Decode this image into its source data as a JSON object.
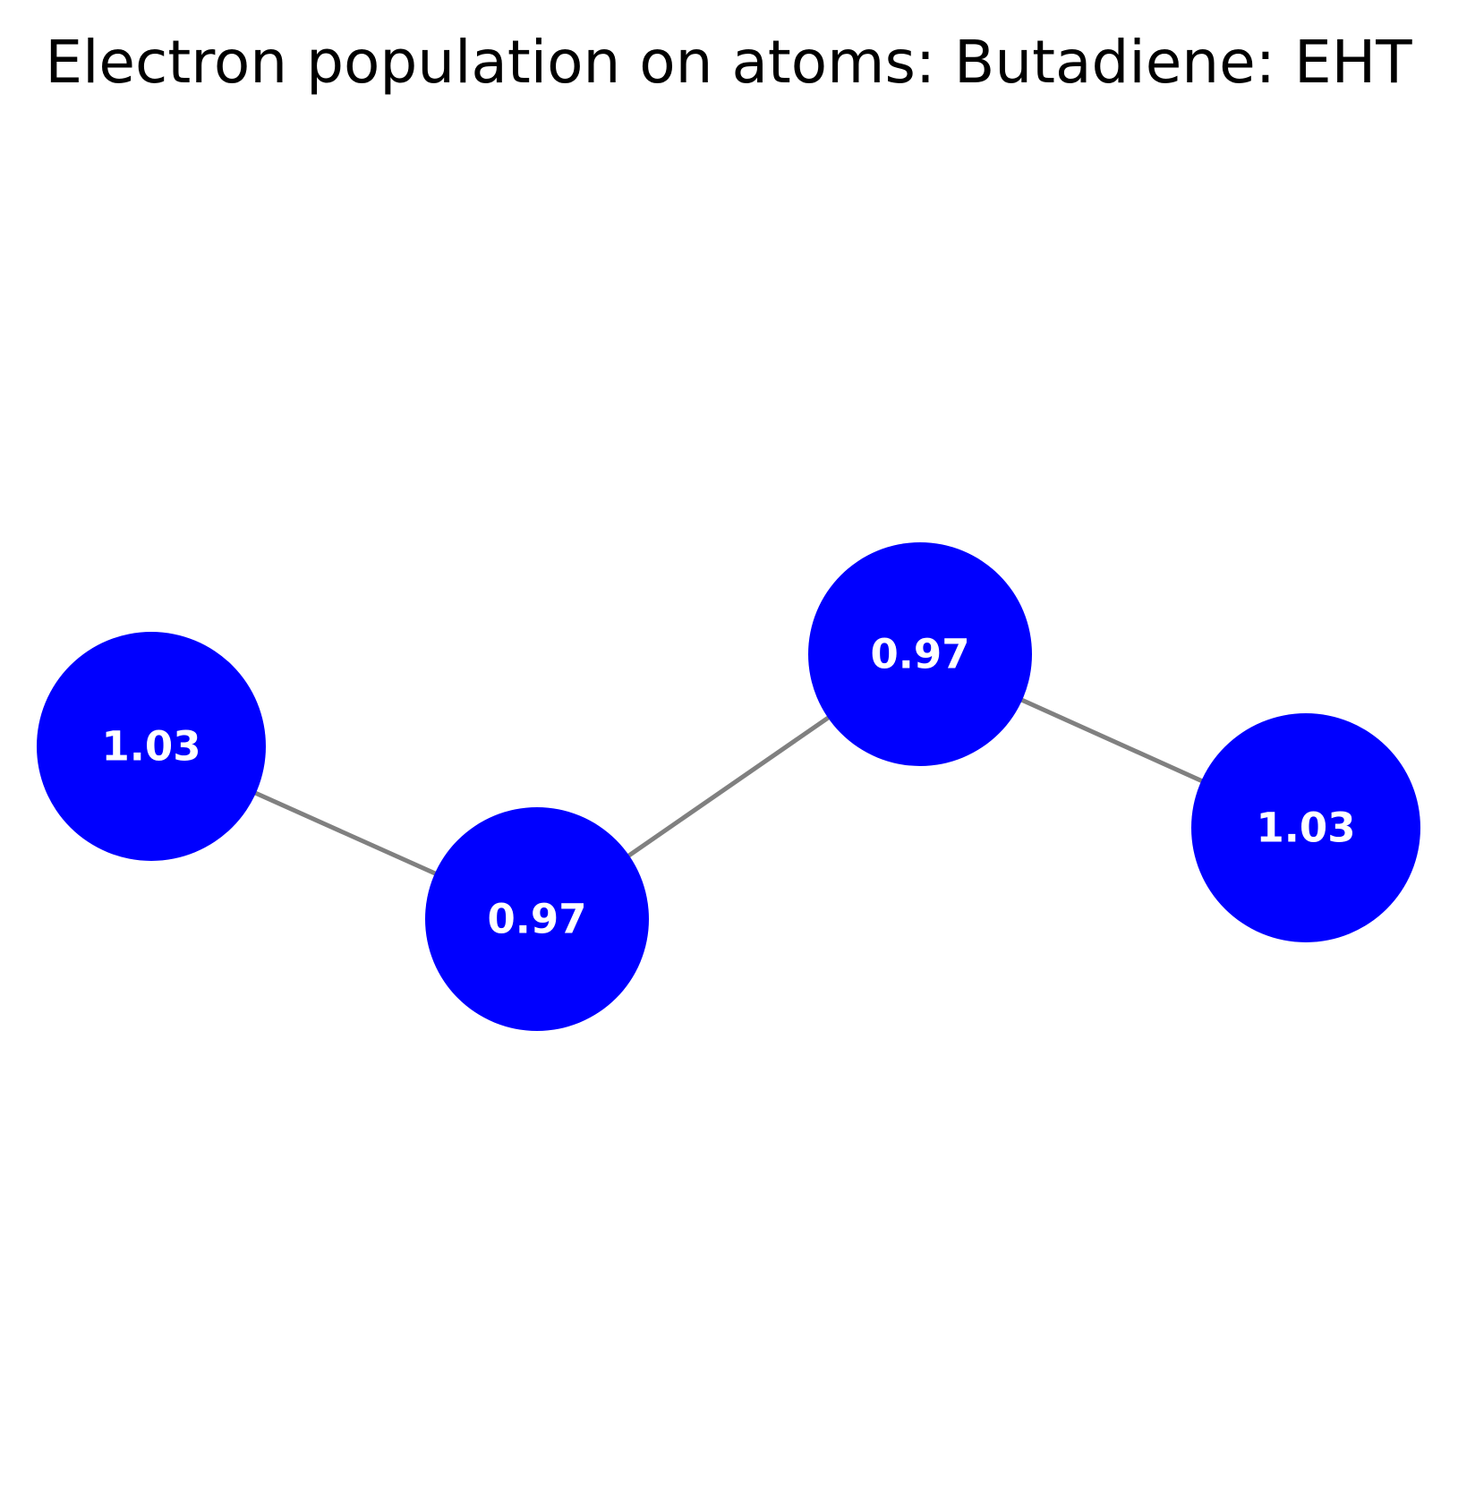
{
  "title": "Electron population on atoms: Butadiene: EHT",
  "colors": {
    "node_fill": "#0000ff",
    "node_label": "#ffffff",
    "bond": "#808080",
    "background": "#ffffff"
  },
  "atoms": [
    {
      "id": "C1",
      "population": "1.03"
    },
    {
      "id": "C2",
      "population": "0.97"
    },
    {
      "id": "C3",
      "population": "0.97"
    },
    {
      "id": "C4",
      "population": "1.03"
    }
  ],
  "bonds": [
    {
      "from": "C1",
      "to": "C2"
    },
    {
      "from": "C2",
      "to": "C3"
    },
    {
      "from": "C3",
      "to": "C4"
    }
  ]
}
